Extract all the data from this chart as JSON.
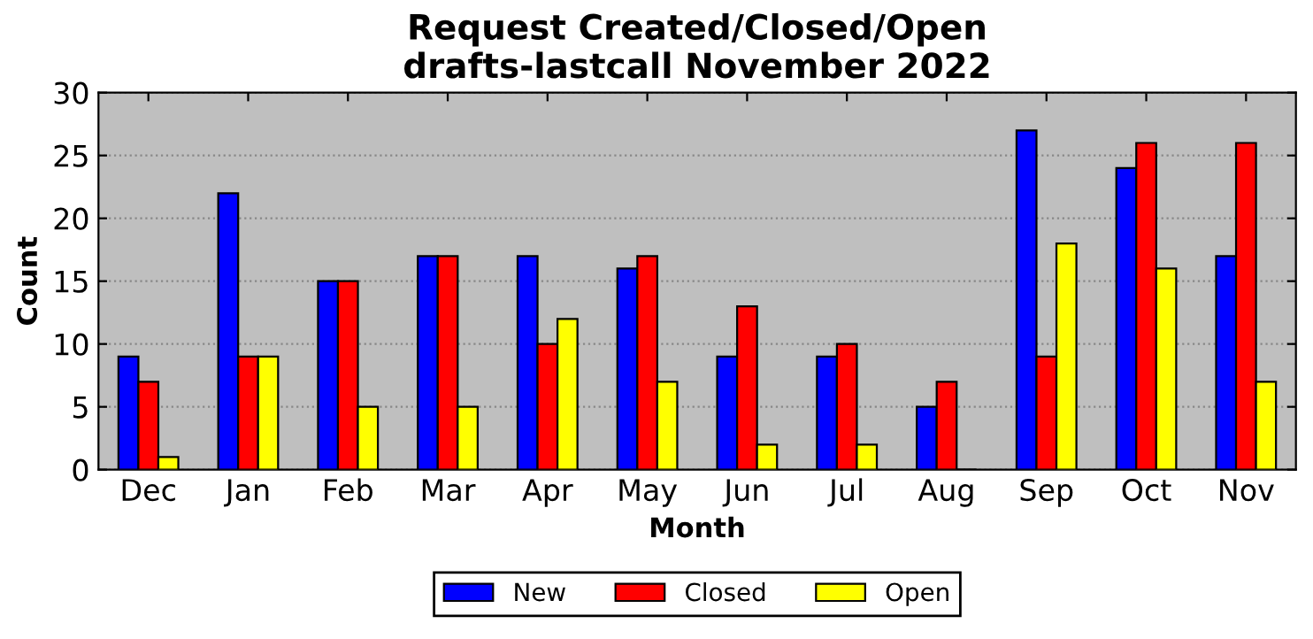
{
  "chart_data": {
    "type": "bar",
    "title": "Request Created/Closed/Open\ndrafts-lastcall November 2022",
    "xlabel": "Month",
    "ylabel": "Count",
    "categories": [
      "Dec",
      "Jan",
      "Feb",
      "Mar",
      "Apr",
      "May",
      "Jun",
      "Jul",
      "Aug",
      "Sep",
      "Oct",
      "Nov"
    ],
    "series": [
      {
        "name": "New",
        "color": "#0000ff",
        "values": [
          9,
          22,
          15,
          17,
          17,
          16,
          9,
          9,
          5,
          27,
          24,
          17
        ]
      },
      {
        "name": "Closed",
        "color": "#ff0000",
        "values": [
          7,
          9,
          15,
          17,
          10,
          17,
          13,
          10,
          7,
          9,
          26,
          26
        ]
      },
      {
        "name": "Open",
        "color": "#ffff00",
        "values": [
          1,
          9,
          5,
          5,
          12,
          7,
          2,
          2,
          0,
          18,
          16,
          7
        ]
      }
    ],
    "ylim": [
      0,
      30
    ],
    "yticks": [
      0,
      5,
      10,
      15,
      20,
      25,
      30
    ],
    "grid": "y",
    "legend": "bottom"
  }
}
